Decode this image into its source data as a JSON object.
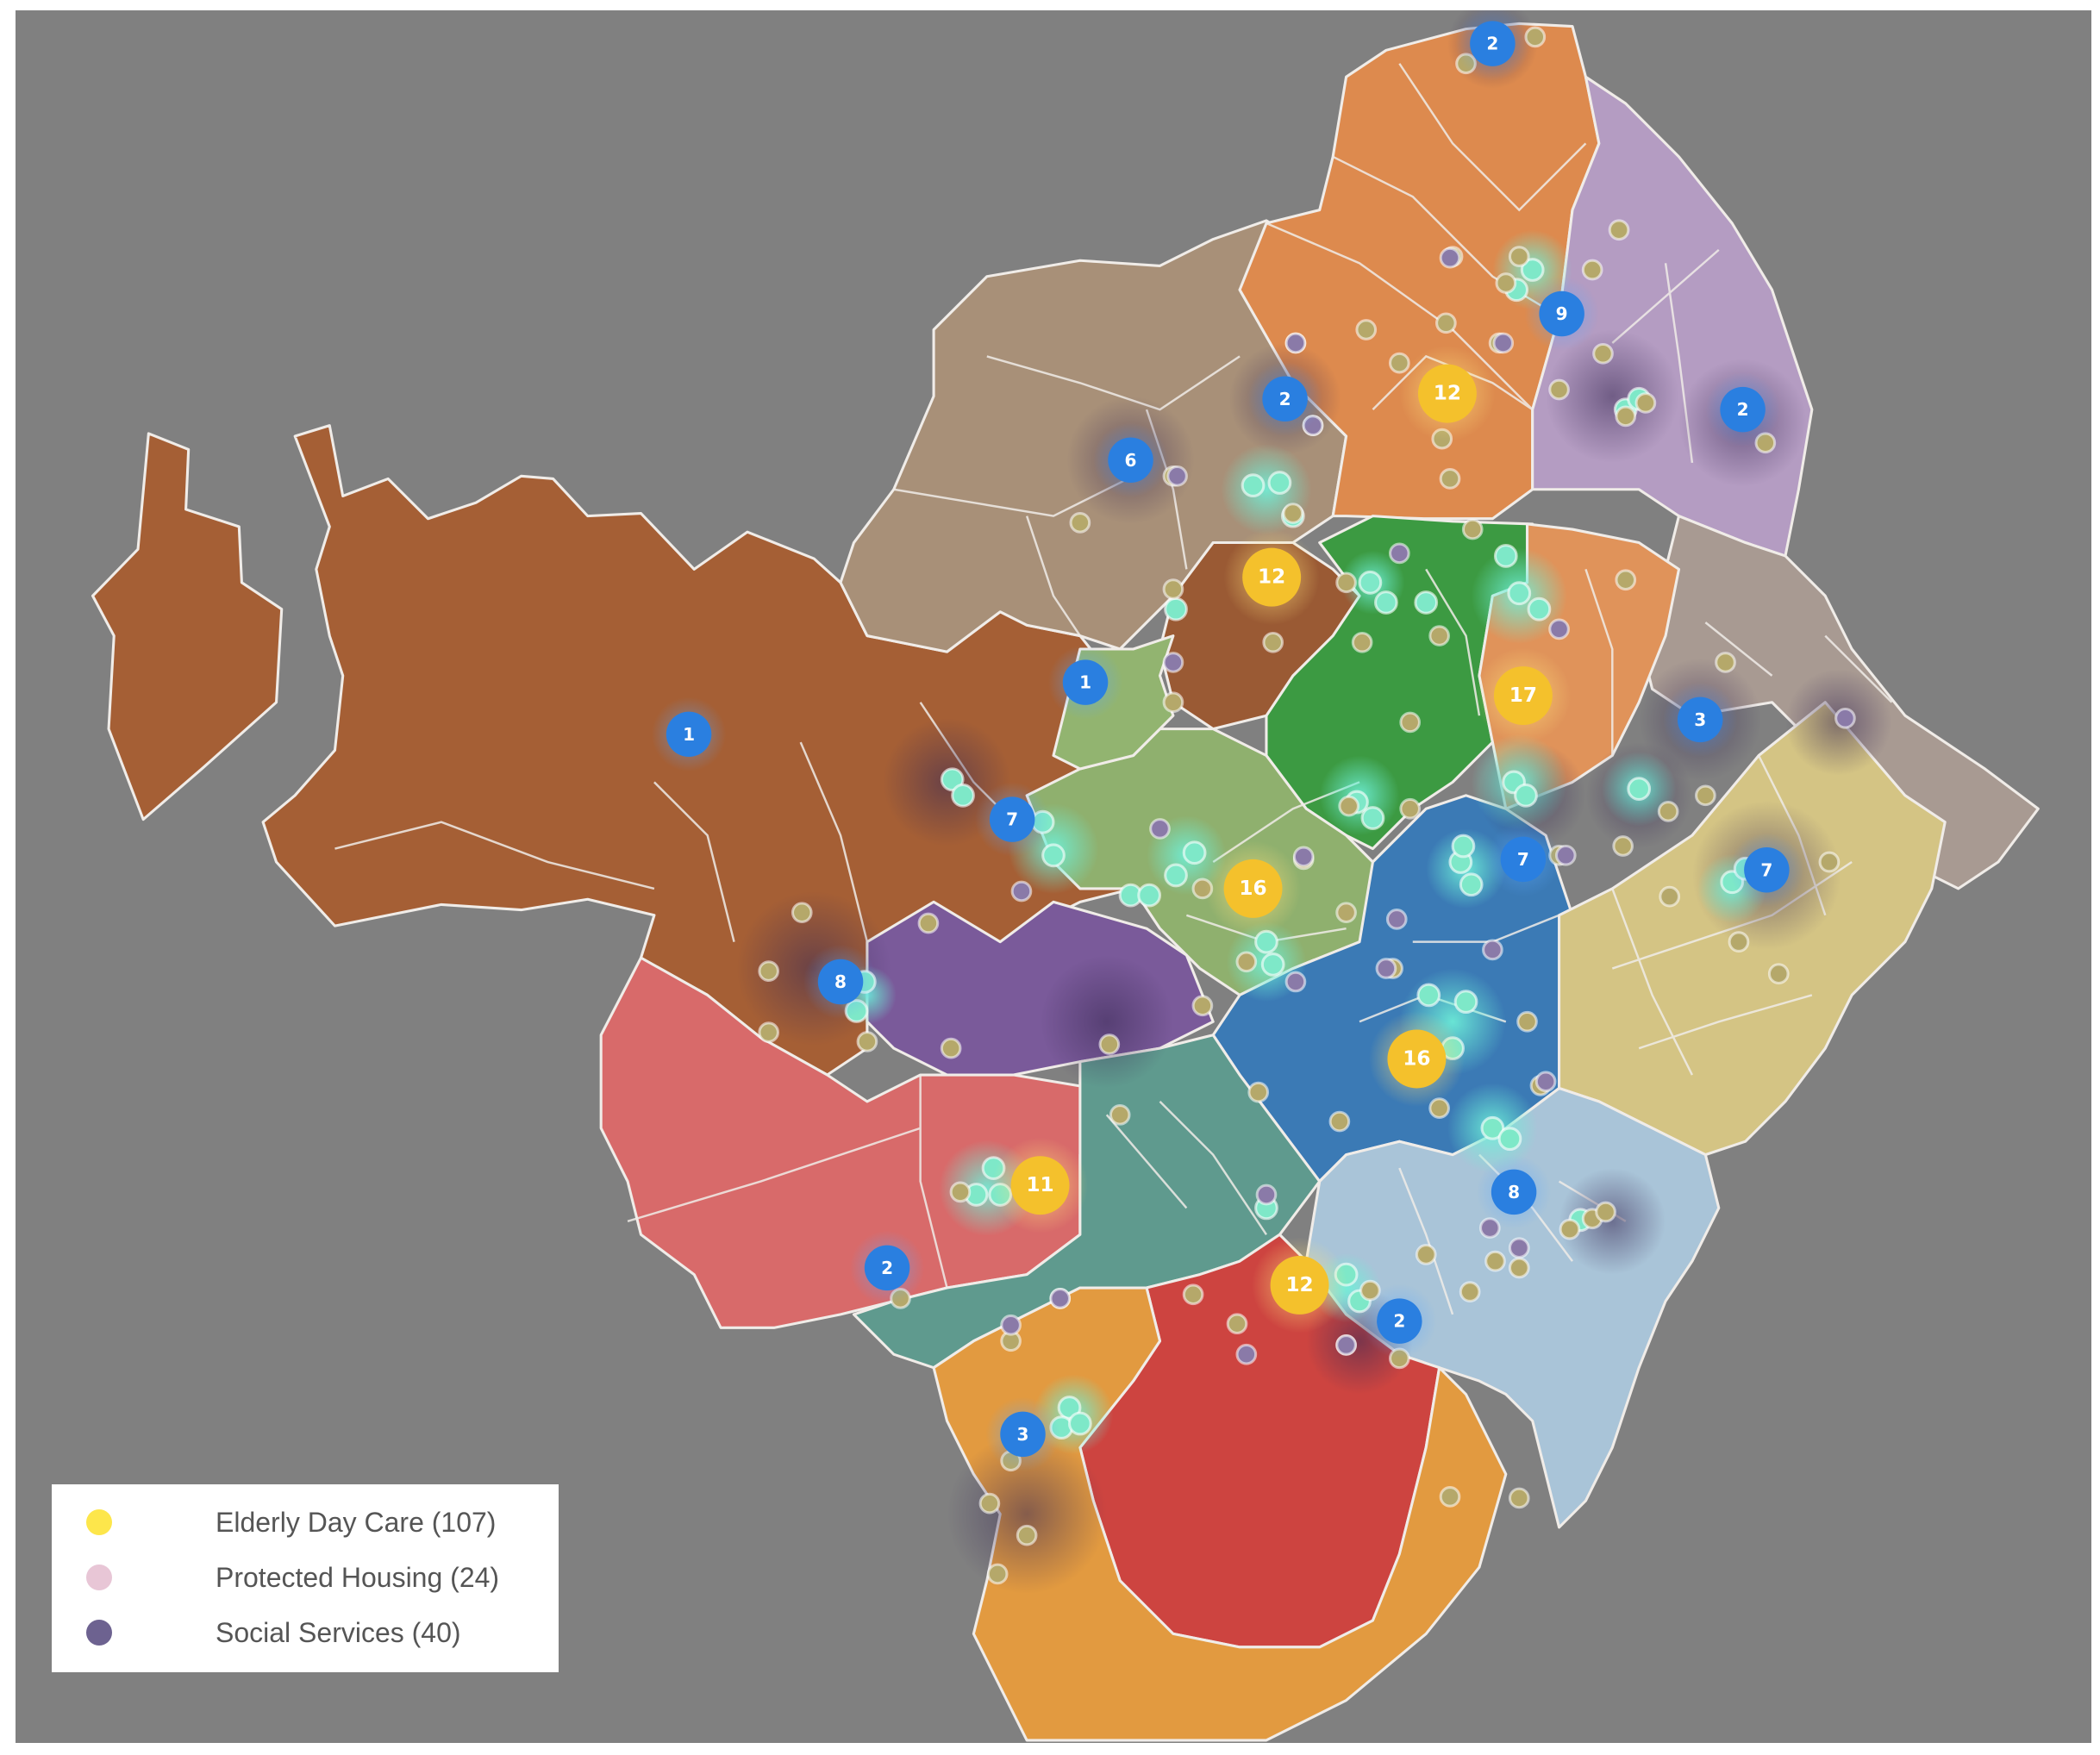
{
  "colors": {
    "background": "#808080",
    "district_brown": "#a55f35",
    "district_tan": "#a89078",
    "district_orange": "#dd8a4e",
    "district_lilac": "#b49cc2",
    "district_green": "#3c9a42",
    "district_light_green": "#8fb06e",
    "district_purple": "#7a5a9a",
    "district_blue": "#3b7ab5",
    "district_light_blue": "#a9c4d8",
    "district_teal": "#5f9a8e",
    "district_red": "#cd4440",
    "district_pink": "#d86a6a",
    "district_yellow": "#d4c484",
    "district_grey": "#a89a92",
    "district_port_orange": "#e29a40",
    "cluster_blue": "#2a7fe0",
    "cluster_yellow": "#f4c12c",
    "border": "#f0ece8"
  },
  "legend": {
    "items": [
      {
        "label": "Elderly Day Care (107)",
        "color": "#fde64b"
      },
      {
        "label": "Protected Housing (24)",
        "color": "#e8c6d6"
      },
      {
        "label": "Social Services (40)",
        "color": "#6d6290"
      }
    ]
  },
  "clusters": [
    {
      "count": "2",
      "type": "blue",
      "lon": 1110,
      "lat": 25
    },
    {
      "count": "9",
      "type": "blue",
      "lon": 1162,
      "lat": 228
    },
    {
      "count": "2",
      "type": "blue",
      "lon": 954,
      "lat": 292
    },
    {
      "count": "12",
      "type": "yellow",
      "lon": 1076,
      "lat": 288
    },
    {
      "count": "2",
      "type": "blue",
      "lon": 1298,
      "lat": 300
    },
    {
      "count": "6",
      "type": "blue",
      "lon": 838,
      "lat": 338
    },
    {
      "count": "12",
      "type": "yellow",
      "lon": 944,
      "lat": 426
    },
    {
      "count": "1",
      "type": "blue",
      "lon": 506,
      "lat": 544
    },
    {
      "count": "1",
      "type": "blue",
      "lon": 804,
      "lat": 505
    },
    {
      "count": "17",
      "type": "yellow",
      "lon": 1133,
      "lat": 515
    },
    {
      "count": "3",
      "type": "blue",
      "lon": 1266,
      "lat": 533
    },
    {
      "count": "7",
      "type": "blue",
      "lon": 749,
      "lat": 608
    },
    {
      "count": "16",
      "type": "yellow",
      "lon": 930,
      "lat": 660
    },
    {
      "count": "7",
      "type": "blue",
      "lon": 1133,
      "lat": 638
    },
    {
      "count": "7",
      "type": "blue",
      "lon": 1316,
      "lat": 646
    },
    {
      "count": "8",
      "type": "blue",
      "lon": 620,
      "lat": 730
    },
    {
      "count": "16",
      "type": "yellow",
      "lon": 1053,
      "lat": 788
    },
    {
      "count": "8",
      "type": "blue",
      "lon": 1126,
      "lat": 888
    },
    {
      "count": "11",
      "type": "yellow",
      "lon": 770,
      "lat": 883
    },
    {
      "count": "2",
      "type": "blue",
      "lon": 655,
      "lat": 945
    },
    {
      "count": "12",
      "type": "yellow",
      "lon": 965,
      "lat": 958
    },
    {
      "count": "2",
      "type": "blue",
      "lon": 1040,
      "lat": 985
    },
    {
      "count": "3",
      "type": "blue",
      "lon": 757,
      "lat": 1070
    }
  ]
}
